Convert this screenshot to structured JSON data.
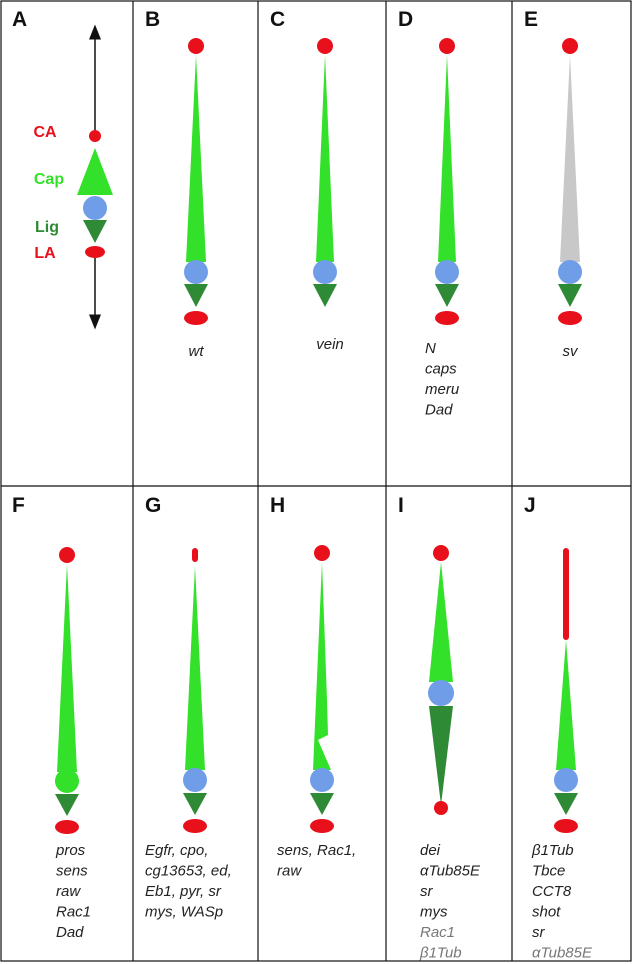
{
  "legend": {
    "ca": "CA",
    "cap": "Cap",
    "lig": "Lig",
    "la": "LA"
  },
  "panels": [
    {
      "letter": "A",
      "lines": [],
      "line_colors": []
    },
    {
      "letter": "B",
      "lines": [
        "wt"
      ],
      "line_colors": [
        "#222"
      ]
    },
    {
      "letter": "C",
      "lines": [
        "vein"
      ],
      "line_colors": [
        "#222"
      ]
    },
    {
      "letter": "D",
      "lines": [
        "N",
        "caps",
        "meru",
        "Dad"
      ],
      "line_colors": [
        "#222",
        "#222",
        "#222",
        "#222"
      ]
    },
    {
      "letter": "E",
      "lines": [
        "sv"
      ],
      "line_colors": [
        "#222"
      ]
    },
    {
      "letter": "F",
      "lines": [
        "pros",
        "sens",
        "raw",
        "Rac1",
        "Dad"
      ],
      "line_colors": [
        "#222",
        "#222",
        "#222",
        "#222",
        "#222"
      ]
    },
    {
      "letter": "G",
      "lines": [
        "Egfr, cpo,",
        "cg13653, ed,",
        "Eb1, pyr, sr",
        "mys, WASp"
      ],
      "line_colors": [
        "#222",
        "#222",
        "#222",
        "#222"
      ]
    },
    {
      "letter": "H",
      "lines": [
        "sens, Rac1,",
        "raw"
      ],
      "line_colors": [
        "#222",
        "#222"
      ]
    },
    {
      "letter": "I",
      "lines": [
        "dei",
        "αTub85E",
        "sr",
        "mys",
        "Rac1",
        "β1Tub"
      ],
      "line_colors": [
        "#222",
        "#222",
        "#222",
        "#222",
        "#777",
        "#777"
      ]
    },
    {
      "letter": "J",
      "lines": [
        "β1Tub",
        "Tbce",
        "CCT8",
        "shot",
        "sr",
        "αTub85E"
      ],
      "line_colors": [
        "#222",
        "#222",
        "#222",
        "#222",
        "#222",
        "#777"
      ]
    }
  ]
}
